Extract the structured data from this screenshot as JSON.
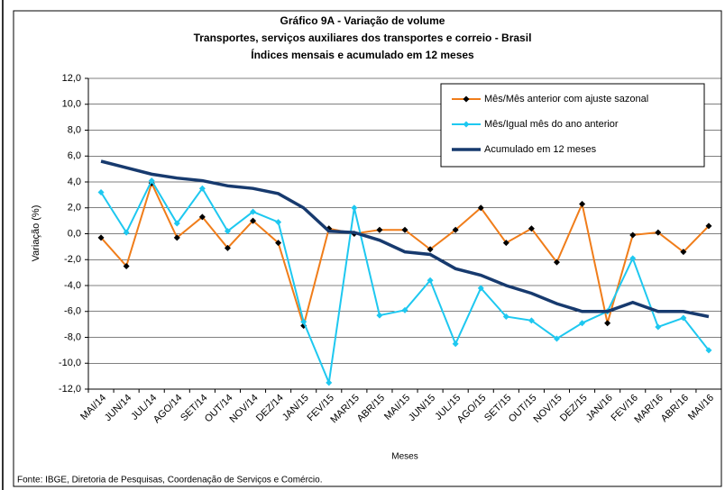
{
  "chart_data": {
    "type": "line",
    "title": "Gráfico 9A - Variação de volume",
    "subtitle": [
      "Transportes, serviços auxiliares dos transportes e correio - Brasil",
      "Índices mensais e acumulado em 12 meses"
    ],
    "y_label": "Variação (%)",
    "x_label": "Meses",
    "source": "Fonte: IBGE, Diretoria de Pesquisas, Coordenação de Serviços e Comércio.",
    "categories": [
      "MAI/14",
      "JUN/14",
      "JUL/14",
      "AGO/14",
      "SET/14",
      "OUT/14",
      "NOV/14",
      "DEZ/14",
      "JAN/15",
      "FEV/15",
      "MAR/15",
      "ABR/15",
      "MAI/15",
      "JUN/15",
      "JUL/15",
      "AGO/15",
      "SET/15",
      "OUT/15",
      "NOV/15",
      "DEZ/15",
      "JAN/16",
      "FEV/16",
      "MAR/16",
      "ABR/16",
      "MAI/16"
    ],
    "series": [
      {
        "name": "Mês/Mês anterior com ajuste sazonal",
        "color": "#f07d1a",
        "marker_color": "#000000",
        "values": [
          -0.3,
          -2.5,
          3.9,
          -0.3,
          1.3,
          -1.1,
          1.0,
          -0.7,
          -7.1,
          0.4,
          0.0,
          0.3,
          0.3,
          -1.2,
          0.3,
          2.0,
          -0.7,
          0.4,
          -2.2,
          2.3,
          -6.9,
          -0.1,
          0.1,
          -1.4,
          0.6
        ]
      },
      {
        "name": "Mês/Igual mês do ano anterior",
        "color": "#1ec8f0",
        "marker_color": "#1ec8f0",
        "values": [
          3.2,
          0.1,
          4.1,
          0.8,
          3.5,
          0.2,
          1.7,
          0.9,
          -6.8,
          -11.5,
          2.0,
          -6.3,
          -5.9,
          -3.6,
          -8.5,
          -4.2,
          -6.4,
          -6.7,
          -8.1,
          -6.9,
          -6.0,
          -1.9,
          -7.2,
          -6.5,
          -9.0
        ]
      },
      {
        "name": "Acumulado em 12 meses",
        "color": "#173a6e",
        "values": [
          5.6,
          5.1,
          4.6,
          4.3,
          4.1,
          3.7,
          3.5,
          3.1,
          2.0,
          0.2,
          0.1,
          -0.5,
          -1.4,
          -1.6,
          -2.7,
          -3.2,
          -4.0,
          -4.6,
          -5.4,
          -6.0,
          -6.0,
          -5.3,
          -6.0,
          -6.0,
          -6.4
        ]
      }
    ],
    "ylim": [
      -12,
      12
    ],
    "yticks": [
      {
        "value": 12,
        "label": "12,0"
      },
      {
        "value": 10,
        "label": "10,0"
      },
      {
        "value": 8,
        "label": "8,0"
      },
      {
        "value": 6,
        "label": "6,0"
      },
      {
        "value": 4,
        "label": "4,0"
      },
      {
        "value": 2,
        "label": "2,0"
      },
      {
        "value": 0,
        "label": "0,0"
      },
      {
        "value": -2,
        "label": "-2,0"
      },
      {
        "value": -4,
        "label": "-4,0"
      },
      {
        "value": -6,
        "label": "-6,0"
      },
      {
        "value": -8,
        "label": "-8,0"
      },
      {
        "value": -10,
        "label": "-10,0"
      },
      {
        "value": -12,
        "label": "-12,0"
      }
    ],
    "grid": true,
    "legend": "top-right"
  }
}
